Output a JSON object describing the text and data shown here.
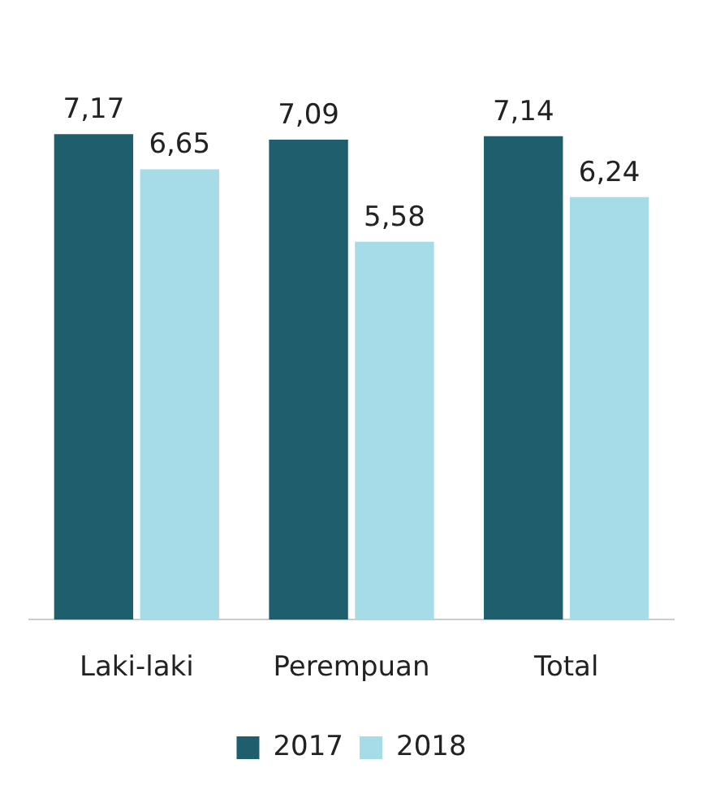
{
  "chart_data": {
    "type": "bar",
    "categories": [
      "Laki-laki",
      "Perempuan",
      "Total"
    ],
    "series": [
      {
        "name": "2017",
        "color": "#1f5e6d",
        "values": [
          7.17,
          7.09,
          7.14
        ],
        "value_labels": [
          "7,17",
          "7,09",
          "7,14"
        ]
      },
      {
        "name": "2018",
        "color": "#a6dbe8",
        "values": [
          6.65,
          5.58,
          6.24
        ],
        "value_labels": [
          "6,65",
          "5,58",
          "6,24"
        ]
      }
    ],
    "legend": "bottom",
    "grid": false
  }
}
